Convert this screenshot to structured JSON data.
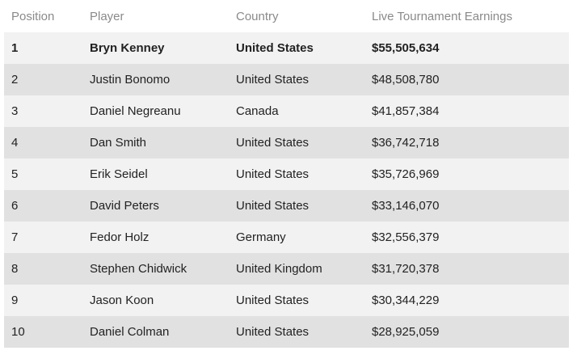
{
  "table": {
    "headers": [
      "Position",
      "Player",
      "Country",
      "Live Tournament Earnings"
    ],
    "rows": [
      {
        "position": "1",
        "player": "Bryn Kenney",
        "country": "United States",
        "earnings": "$55,505,634"
      },
      {
        "position": "2",
        "player": "Justin Bonomo",
        "country": "United States",
        "earnings": "$48,508,780"
      },
      {
        "position": "3",
        "player": "Daniel Negreanu",
        "country": "Canada",
        "earnings": "$41,857,384"
      },
      {
        "position": "4",
        "player": "Dan Smith",
        "country": "United States",
        "earnings": "$36,742,718"
      },
      {
        "position": "5",
        "player": "Erik Seidel",
        "country": "United States",
        "earnings": "$35,726,969"
      },
      {
        "position": "6",
        "player": "David Peters",
        "country": "United States",
        "earnings": "$33,146,070"
      },
      {
        "position": "7",
        "player": "Fedor Holz",
        "country": "Germany",
        "earnings": "$32,556,379"
      },
      {
        "position": "8",
        "player": "Stephen Chidwick",
        "country": "United Kingdom",
        "earnings": "$31,720,378"
      },
      {
        "position": "9",
        "player": "Jason Koon",
        "country": "United States",
        "earnings": "$30,344,229"
      },
      {
        "position": "10",
        "player": "Daniel Colman",
        "country": "United States",
        "earnings": "$28,925,059"
      }
    ]
  }
}
